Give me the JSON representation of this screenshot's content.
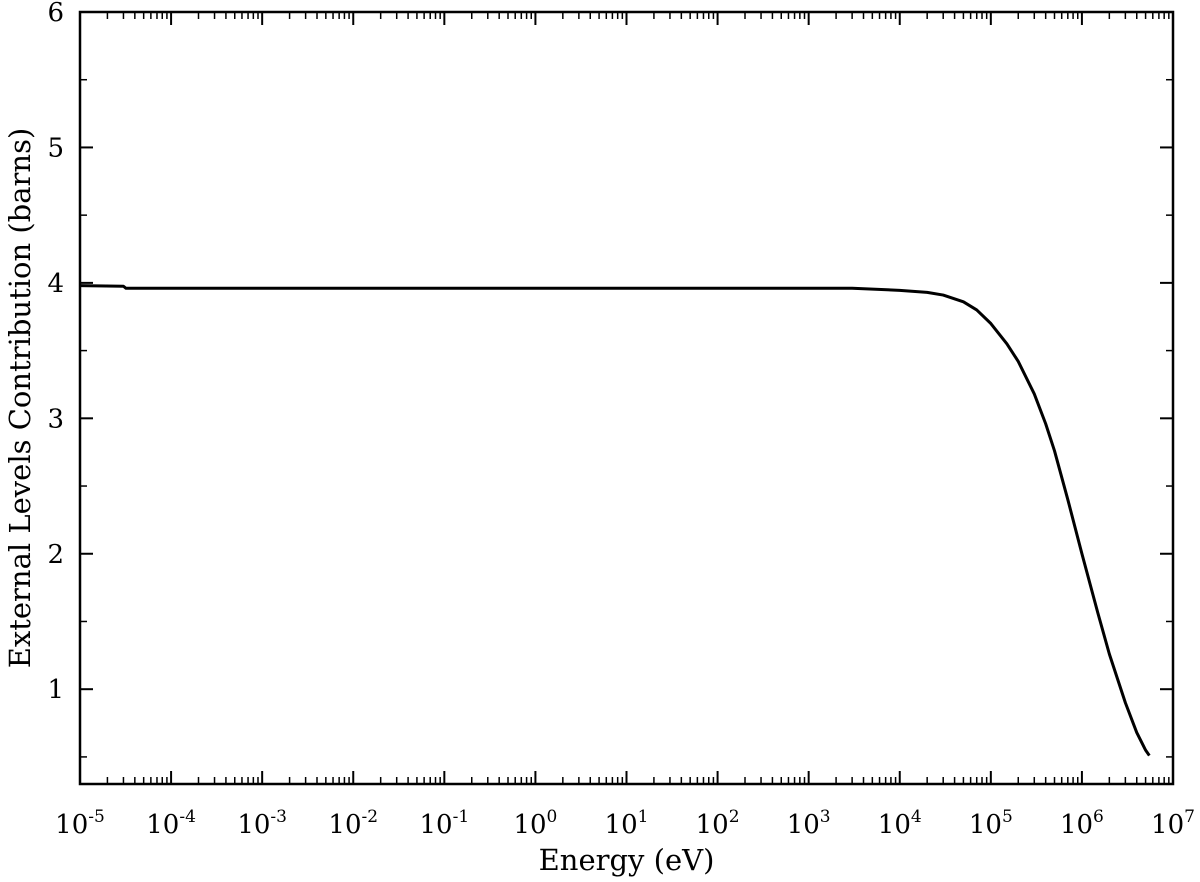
{
  "chart_data": {
    "type": "line",
    "title": "",
    "xlabel": "Energy (eV)",
    "ylabel": "External Levels Contribution (barns)",
    "x_scale": "log",
    "xlim": [
      1e-05,
      10000000.0
    ],
    "ylim": [
      0.3,
      6
    ],
    "grid": false,
    "legend": "none",
    "x_ticks": [
      {
        "base": "10",
        "exp": "-5"
      },
      {
        "base": "10",
        "exp": "-4"
      },
      {
        "base": "10",
        "exp": "-3"
      },
      {
        "base": "10",
        "exp": "-2"
      },
      {
        "base": "10",
        "exp": "-1"
      },
      {
        "base": "10",
        "exp": "0"
      },
      {
        "base": "10",
        "exp": "1"
      },
      {
        "base": "10",
        "exp": "2"
      },
      {
        "base": "10",
        "exp": "3"
      },
      {
        "base": "10",
        "exp": "4"
      },
      {
        "base": "10",
        "exp": "5"
      },
      {
        "base": "10",
        "exp": "6"
      },
      {
        "base": "10",
        "exp": "7"
      }
    ],
    "y_ticks": [
      "1",
      "2",
      "3",
      "4",
      "5",
      "6"
    ],
    "series": [
      {
        "color": "#000000",
        "x": [
          1e-05,
          3e-05,
          3.2e-05,
          0.0001,
          0.001,
          0.01,
          0.1,
          1,
          10,
          100,
          1000,
          3000,
          10000,
          20000,
          30000,
          50000,
          70000,
          100000,
          150000,
          200000,
          300000,
          400000,
          500000,
          700000,
          1000000,
          1500000,
          2000000,
          3000000,
          4000000,
          5000000,
          5500000
        ],
        "y": [
          3.98,
          3.975,
          3.96,
          3.96,
          3.96,
          3.96,
          3.96,
          3.96,
          3.96,
          3.96,
          3.96,
          3.96,
          3.945,
          3.93,
          3.91,
          3.86,
          3.8,
          3.7,
          3.55,
          3.42,
          3.18,
          2.96,
          2.76,
          2.4,
          2.0,
          1.56,
          1.26,
          0.9,
          0.68,
          0.55,
          0.51
        ]
      }
    ]
  }
}
